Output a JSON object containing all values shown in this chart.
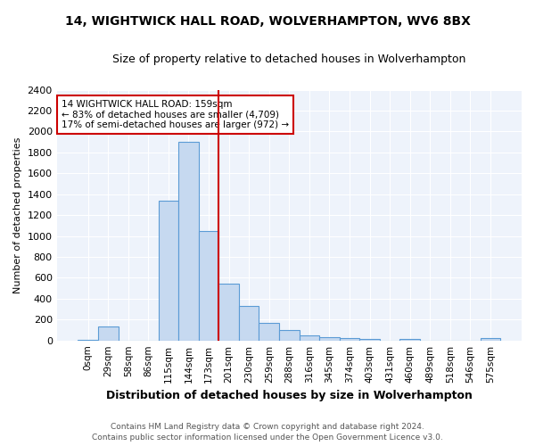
{
  "title1": "14, WIGHTWICK HALL ROAD, WOLVERHAMPTON, WV6 8BX",
  "title2": "Size of property relative to detached houses in Wolverhampton",
  "xlabel": "Distribution of detached houses by size in Wolverhampton",
  "ylabel": "Number of detached properties",
  "annotation_line1": "14 WIGHTWICK HALL ROAD: 159sqm",
  "annotation_line2": "← 83% of detached houses are smaller (4,709)",
  "annotation_line3": "17% of semi-detached houses are larger (972) →",
  "footer1": "Contains HM Land Registry data © Crown copyright and database right 2024.",
  "footer2": "Contains public sector information licensed under the Open Government Licence v3.0.",
  "bin_labels": [
    "0sqm",
    "29sqm",
    "58sqm",
    "86sqm",
    "115sqm",
    "144sqm",
    "173sqm",
    "201sqm",
    "230sqm",
    "259sqm",
    "288sqm",
    "316sqm",
    "345sqm",
    "374sqm",
    "403sqm",
    "431sqm",
    "460sqm",
    "489sqm",
    "518sqm",
    "546sqm",
    "575sqm"
  ],
  "bar_values": [
    5,
    130,
    0,
    0,
    1340,
    1900,
    1050,
    540,
    330,
    165,
    100,
    50,
    30,
    20,
    15,
    0,
    15,
    0,
    0,
    0,
    20
  ],
  "bar_color": "#c6d9f0",
  "bar_edge_color": "#5b9bd5",
  "vline_color": "#cc0000",
  "vline_position": 6.5,
  "ylim": [
    0,
    2400
  ],
  "yticks": [
    0,
    200,
    400,
    600,
    800,
    1000,
    1200,
    1400,
    1600,
    1800,
    2000,
    2200,
    2400
  ],
  "annotation_box_color": "#ffffff",
  "annotation_box_edge": "#cc0000",
  "bg_color": "#eef3fb",
  "title1_fontsize": 10,
  "title2_fontsize": 9,
  "ylabel_fontsize": 8,
  "xlabel_fontsize": 9,
  "tick_fontsize": 7.5,
  "ytick_fontsize": 8,
  "footer_fontsize": 6.5
}
